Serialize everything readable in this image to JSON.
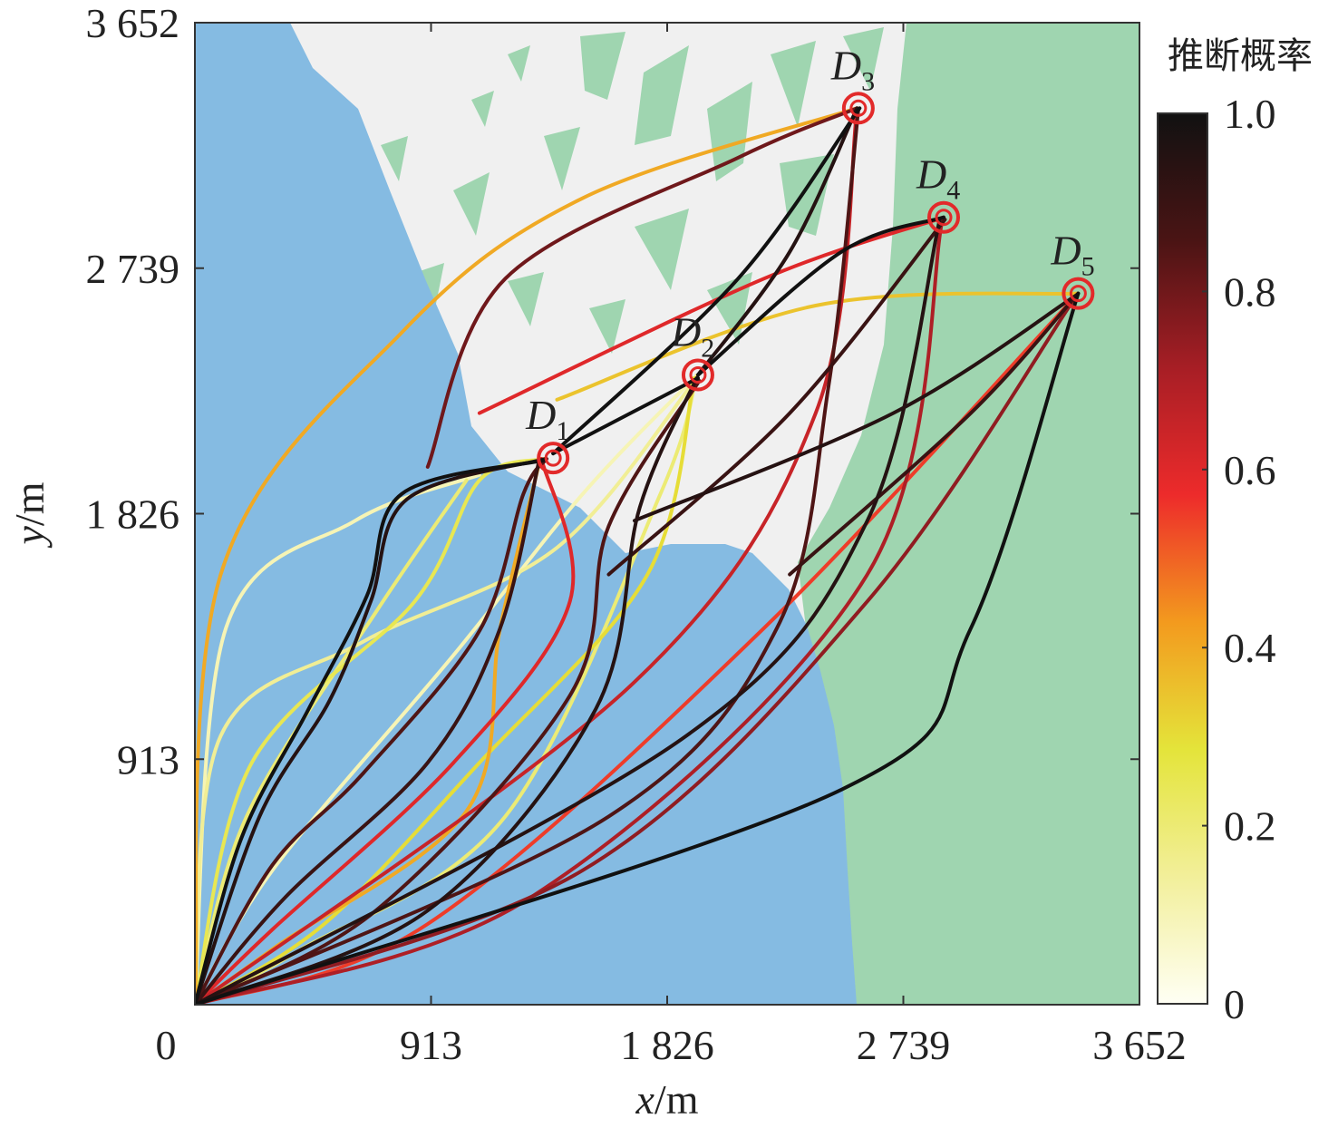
{
  "chart_data": {
    "type": "line",
    "title": "",
    "xlabel_var": "x",
    "xlabel_unit": "/m",
    "ylabel_var": "y",
    "ylabel_unit": "/m",
    "xlim": [
      0,
      3652
    ],
    "ylim": [
      0,
      3652
    ],
    "xticks": [
      0,
      913,
      1826,
      2739,
      3652
    ],
    "xtick_labels": [
      "0",
      "913",
      "1 826",
      "2 739",
      "3 652"
    ],
    "yticks": [
      913,
      1826,
      2739,
      3652
    ],
    "ytick_labels": [
      "913",
      "1 826",
      "2 739",
      "3 652"
    ],
    "colorbar": {
      "title": "推断概率",
      "range": [
        0,
        1
      ],
      "ticks": [
        0,
        0.2,
        0.4,
        0.6,
        0.8,
        1.0
      ],
      "tick_labels": [
        "0",
        "0.2",
        "0.4",
        "0.6",
        "0.8",
        "1.0"
      ],
      "colormap": [
        "#fffff4",
        "#f2ef9a",
        "#e4e43a",
        "#f39a1e",
        "#ed2b2b",
        "#a71e25",
        "#4a1414",
        "#111111"
      ]
    },
    "background": {
      "sea_color": "#85bbe2",
      "land_color": "#f0f0f0",
      "forest_color": "#9fd5b0"
    },
    "destinations": [
      {
        "name": "D",
        "sub": "1",
        "x": 1385,
        "y": 2033
      },
      {
        "name": "D",
        "sub": "2",
        "x": 1945,
        "y": 2342
      },
      {
        "name": "D",
        "sub": "3",
        "x": 2565,
        "y": 3334
      },
      {
        "name": "D",
        "sub": "4",
        "x": 2895,
        "y": 2928
      },
      {
        "name": "D",
        "sub": "5",
        "x": 3415,
        "y": 2645
      }
    ],
    "series": [
      {
        "dest": 1,
        "p": 1.0,
        "pts": [
          [
            0,
            0
          ],
          [
            180,
            620
          ],
          [
            440,
            1100
          ],
          [
            665,
            1520
          ],
          [
            800,
            1900
          ],
          [
            1350,
            2025
          ]
        ]
      },
      {
        "dest": 1,
        "p": 0.95,
        "pts": [
          [
            0,
            0
          ],
          [
            250,
            700
          ],
          [
            520,
            1130
          ],
          [
            680,
            1500
          ],
          [
            820,
            1880
          ],
          [
            1355,
            2030
          ]
        ]
      },
      {
        "dest": 1,
        "p": 0.85,
        "pts": [
          [
            0,
            0
          ],
          [
            300,
            520
          ],
          [
            650,
            860
          ],
          [
            1100,
            1390
          ],
          [
            1270,
            1900
          ],
          [
            1360,
            2030
          ]
        ]
      },
      {
        "dest": 1,
        "p": 0.9,
        "pts": [
          [
            0,
            0
          ],
          [
            350,
            400
          ],
          [
            900,
            900
          ],
          [
            1180,
            1400
          ],
          [
            1330,
            2020
          ]
        ]
      },
      {
        "dest": 1,
        "p": 0.6,
        "pts": [
          [
            0,
            0
          ],
          [
            300,
            280
          ],
          [
            1000,
            900
          ],
          [
            1450,
            1500
          ],
          [
            1340,
            2030
          ]
        ]
      },
      {
        "dest": 1,
        "p": 0.4,
        "pts": [
          [
            0,
            0
          ],
          [
            320,
            220
          ],
          [
            1050,
            720
          ],
          [
            1180,
            1400
          ],
          [
            1330,
            2010
          ]
        ]
      },
      {
        "dest": 1,
        "p": 0.25,
        "pts": [
          [
            0,
            0
          ],
          [
            220,
            900
          ],
          [
            850,
            1500
          ],
          [
            1100,
            1950
          ],
          [
            1350,
            2030
          ]
        ]
      },
      {
        "dest": 1,
        "p": 0.1,
        "pts": [
          [
            0,
            0
          ],
          [
            120,
            1400
          ],
          [
            620,
            1800
          ],
          [
            1100,
            1970
          ]
        ]
      },
      {
        "dest": 1,
        "p": 0.2,
        "pts": [
          [
            0,
            0
          ],
          [
            200,
            700
          ],
          [
            700,
            1460
          ],
          [
            1050,
            1950
          ]
        ]
      },
      {
        "dest": 2,
        "p": 1.0,
        "pts": [
          [
            1385,
            2050
          ],
          [
            1945,
            2330
          ]
        ]
      },
      {
        "dest": 2,
        "p": 0.95,
        "pts": [
          [
            0,
            0
          ],
          [
            900,
            350
          ],
          [
            1550,
            1100
          ],
          [
            1720,
            1850
          ],
          [
            1940,
            2330
          ]
        ]
      },
      {
        "dest": 2,
        "p": 0.85,
        "pts": [
          [
            0,
            0
          ],
          [
            700,
            350
          ],
          [
            1450,
            1150
          ],
          [
            1600,
            1780
          ],
          [
            1950,
            2320
          ]
        ]
      },
      {
        "dest": 2,
        "p": 0.3,
        "pts": [
          [
            0,
            0
          ],
          [
            500,
            300
          ],
          [
            1100,
            900
          ],
          [
            1750,
            1600
          ],
          [
            1930,
            2330
          ]
        ]
      },
      {
        "dest": 2,
        "p": 0.2,
        "pts": [
          [
            0,
            0
          ],
          [
            400,
            200
          ],
          [
            1200,
            700
          ],
          [
            1800,
            1900
          ],
          [
            1940,
            2340
          ]
        ]
      },
      {
        "dest": 2,
        "p": 0.15,
        "pts": [
          [
            0,
            0
          ],
          [
            100,
            1000
          ],
          [
            650,
            1350
          ],
          [
            1400,
            1700
          ],
          [
            1940,
            2330
          ]
        ]
      },
      {
        "dest": 2,
        "p": 0.1,
        "pts": [
          [
            0,
            0
          ],
          [
            300,
            500
          ],
          [
            1000,
            1300
          ],
          [
            1500,
            1900
          ],
          [
            1930,
            2330
          ]
        ]
      },
      {
        "dest": 3,
        "p": 1.0,
        "pts": [
          [
            1385,
            2050
          ],
          [
            2100,
            2700
          ],
          [
            2570,
            3334
          ]
        ]
      },
      {
        "dest": 3,
        "p": 0.95,
        "pts": [
          [
            1945,
            2342
          ],
          [
            2300,
            2800
          ],
          [
            2560,
            3334
          ]
        ]
      },
      {
        "dest": 3,
        "p": 0.85,
        "pts": [
          [
            0,
            0
          ],
          [
            1600,
            700
          ],
          [
            2250,
            1400
          ],
          [
            2450,
            2300
          ],
          [
            2565,
            3330
          ]
        ]
      },
      {
        "dest": 3,
        "p": 0.65,
        "pts": [
          [
            0,
            0
          ],
          [
            1700,
            1200
          ],
          [
            2400,
            2200
          ],
          [
            2560,
            3330
          ]
        ]
      },
      {
        "dest": 3,
        "p": 0.4,
        "pts": [
          [
            0,
            0
          ],
          [
            100,
            1600
          ],
          [
            800,
            2500
          ],
          [
            1500,
            3000
          ],
          [
            2560,
            3334
          ]
        ]
      },
      {
        "dest": 3,
        "p": 0.8,
        "pts": [
          [
            900,
            2000
          ],
          [
            1200,
            2700
          ],
          [
            2100,
            3150
          ],
          [
            2560,
            3334
          ]
        ]
      },
      {
        "dest": 4,
        "p": 1.0,
        "pts": [
          [
            1945,
            2342
          ],
          [
            2500,
            2800
          ],
          [
            2895,
            2928
          ]
        ]
      },
      {
        "dest": 4,
        "p": 0.95,
        "pts": [
          [
            0,
            0
          ],
          [
            1900,
            1000
          ],
          [
            2600,
            1800
          ],
          [
            2880,
            2920
          ]
        ]
      },
      {
        "dest": 4,
        "p": 0.9,
        "pts": [
          [
            1600,
            1600
          ],
          [
            2300,
            2200
          ],
          [
            2900,
            2920
          ]
        ]
      },
      {
        "dest": 4,
        "p": 0.7,
        "pts": [
          [
            0,
            0
          ],
          [
            1300,
            400
          ],
          [
            2600,
            1600
          ],
          [
            2890,
            2920
          ]
        ]
      },
      {
        "dest": 4,
        "p": 0.6,
        "pts": [
          [
            1100,
            2200
          ],
          [
            2200,
            2700
          ],
          [
            2895,
            2928
          ]
        ]
      },
      {
        "dest": 5,
        "p": 1.0,
        "pts": [
          [
            0,
            0
          ],
          [
            2500,
            800
          ],
          [
            3000,
            1400
          ],
          [
            3415,
            2645
          ]
        ]
      },
      {
        "dest": 5,
        "p": 0.95,
        "pts": [
          [
            1700,
            1800
          ],
          [
            2700,
            2200
          ],
          [
            3410,
            2640
          ]
        ]
      },
      {
        "dest": 5,
        "p": 0.9,
        "pts": [
          [
            2300,
            1600
          ],
          [
            3000,
            2200
          ],
          [
            3415,
            2645
          ]
        ]
      },
      {
        "dest": 5,
        "p": 0.75,
        "pts": [
          [
            0,
            0
          ],
          [
            1500,
            500
          ],
          [
            2600,
            1500
          ],
          [
            3410,
            2640
          ]
        ]
      },
      {
        "dest": 5,
        "p": 0.35,
        "pts": [
          [
            1400,
            2250
          ],
          [
            2400,
            2600
          ],
          [
            3415,
            2645
          ]
        ]
      },
      {
        "dest": 5,
        "p": 0.55,
        "pts": [
          [
            0,
            0
          ],
          [
            900,
            300
          ],
          [
            2200,
            1400
          ],
          [
            3410,
            2640
          ]
        ]
      }
    ]
  }
}
